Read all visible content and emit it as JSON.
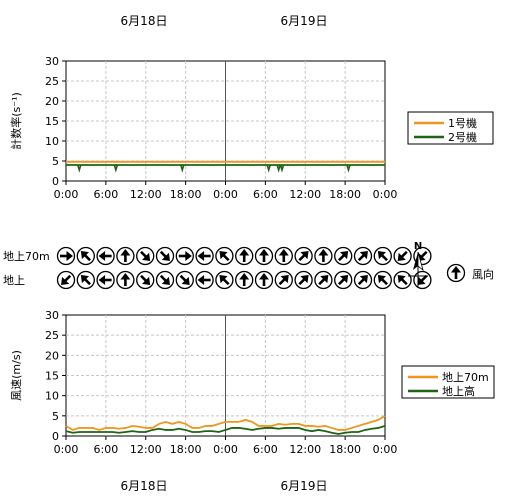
{
  "date_labels_top": [
    "6月18日",
    "6月19日"
  ],
  "date_labels_bottom": [
    "6月18日",
    "6月19日"
  ],
  "compass": {
    "north_label": "N",
    "wind_dir_label": "風向"
  },
  "wind_rows": {
    "upper": {
      "label": "地上70m",
      "dirs": [
        90,
        315,
        270,
        0,
        135,
        135,
        90,
        270,
        315,
        0,
        0,
        0,
        45,
        0,
        45,
        45,
        315,
        225,
        225
      ]
    },
    "lower": {
      "label": "地上",
      "dirs": [
        225,
        315,
        270,
        0,
        135,
        135,
        135,
        270,
        315,
        0,
        0,
        45,
        45,
        45,
        45,
        45,
        315,
        315,
        225
      ]
    }
  },
  "chart_data": [
    {
      "type": "line",
      "ylabel": "計数率(s⁻¹)",
      "ylim": [
        0,
        30
      ],
      "yticks": [
        0,
        5,
        10,
        15,
        20,
        25,
        30
      ],
      "xticks": [
        "0:00",
        "6:00",
        "12:00",
        "18:00",
        "0:00",
        "6:00",
        "12:00",
        "18:00",
        "0:00"
      ],
      "xlim": [
        0,
        48
      ],
      "legend": "right",
      "series": [
        {
          "name": "1号機",
          "color": "#f0961e",
          "values": [
            4.8,
            4.8,
            4.8,
            4.8,
            4.8,
            4.8,
            4.8,
            4.8,
            4.8
          ]
        },
        {
          "name": "2号機",
          "color": "#1e6414",
          "values": [
            4.0,
            4.0,
            4.0,
            4.0,
            4.0,
            4.0,
            4.0,
            4.0,
            4.0
          ],
          "dips": [
            2,
            7.5,
            17.5,
            30.5,
            32,
            32.5,
            42.5
          ]
        }
      ]
    },
    {
      "type": "line",
      "ylabel": "風速(m/s)",
      "ylim": [
        0,
        30
      ],
      "yticks": [
        0,
        5,
        10,
        15,
        20,
        25,
        30
      ],
      "xticks": [
        "0:00",
        "6:00",
        "12:00",
        "18:00",
        "0:00",
        "6:00",
        "12:00",
        "18:00",
        "0:00"
      ],
      "xlim": [
        0,
        48
      ],
      "legend": "right",
      "series": [
        {
          "name": "地上70m",
          "color": "#f0961e",
          "x": [
            0,
            1,
            2,
            3,
            4,
            5,
            6,
            7,
            8,
            9,
            10,
            11,
            12,
            13,
            14,
            15,
            16,
            17,
            18,
            19,
            20,
            21,
            22,
            23,
            24,
            25,
            26,
            27,
            28,
            29,
            30,
            31,
            32,
            33,
            34,
            35,
            36,
            37,
            38,
            39,
            40,
            41,
            42,
            43,
            44,
            45,
            46,
            47,
            48
          ],
          "values": [
            2.5,
            1.5,
            2.0,
            2.0,
            2.0,
            1.5,
            2.0,
            2.0,
            1.8,
            2.0,
            2.5,
            2.3,
            2.0,
            2.0,
            3.0,
            3.5,
            3.0,
            3.5,
            3.0,
            2.0,
            2.0,
            2.5,
            2.5,
            3.0,
            3.5,
            3.5,
            3.5,
            4.0,
            3.5,
            2.5,
            2.5,
            2.5,
            3.0,
            2.8,
            3.0,
            3.0,
            2.5,
            2.5,
            2.3,
            2.5,
            2.0,
            1.5,
            1.5,
            2.0,
            2.5,
            3.0,
            3.5,
            4.0,
            5.0
          ]
        },
        {
          "name": "地上高",
          "color": "#1e6414",
          "x": [
            0,
            1,
            2,
            3,
            4,
            5,
            6,
            7,
            8,
            9,
            10,
            11,
            12,
            13,
            14,
            15,
            16,
            17,
            18,
            19,
            20,
            21,
            22,
            23,
            24,
            25,
            26,
            27,
            28,
            29,
            30,
            31,
            32,
            33,
            34,
            35,
            36,
            37,
            38,
            39,
            40,
            41,
            42,
            43,
            44,
            45,
            46,
            47,
            48
          ],
          "values": [
            1.2,
            0.8,
            1.0,
            1.0,
            1.0,
            1.0,
            1.0,
            1.0,
            0.8,
            1.0,
            1.2,
            1.0,
            1.0,
            1.5,
            1.8,
            1.5,
            1.5,
            1.8,
            1.5,
            1.0,
            1.0,
            1.2,
            1.2,
            1.0,
            1.5,
            2.0,
            2.0,
            1.8,
            1.5,
            1.8,
            2.0,
            2.0,
            1.8,
            2.0,
            2.0,
            2.0,
            1.5,
            1.2,
            1.5,
            1.2,
            0.8,
            0.5,
            0.8,
            1.0,
            1.0,
            1.5,
            1.8,
            2.0,
            2.5
          ]
        }
      ]
    }
  ]
}
